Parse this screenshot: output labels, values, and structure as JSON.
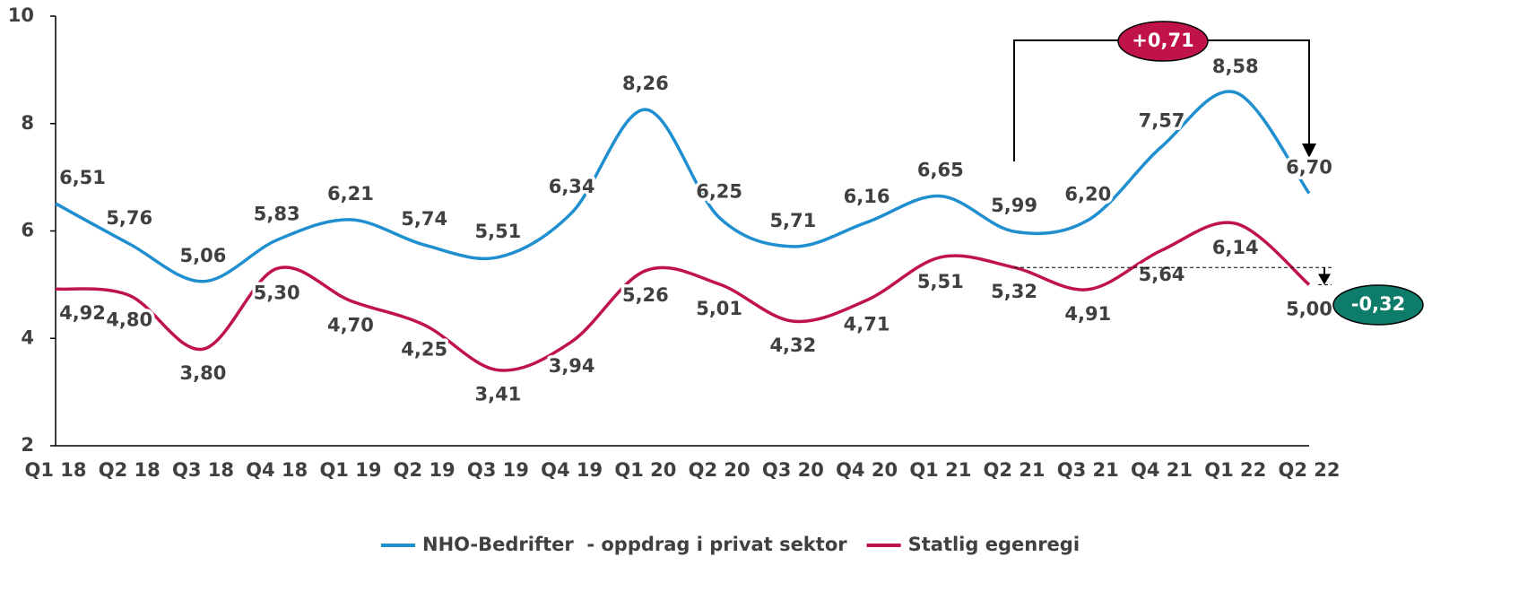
{
  "chart_data": {
    "type": "line",
    "categories": [
      "Q1 18",
      "Q2 18",
      "Q3 18",
      "Q4 18",
      "Q1 19",
      "Q2 19",
      "Q3 19",
      "Q4 19",
      "Q1 20",
      "Q2 20",
      "Q3 20",
      "Q4 20",
      "Q1 21",
      "Q2 21",
      "Q3 21",
      "Q4 21",
      "Q1 22",
      "Q2 22"
    ],
    "series": [
      {
        "name": "NHO-Bedrifter  - oppdrag i privat sektor",
        "color": "#1f8fcf",
        "values": [
          6.51,
          5.76,
          5.06,
          5.83,
          6.21,
          5.74,
          5.51,
          6.34,
          8.26,
          6.25,
          5.71,
          6.16,
          6.65,
          5.99,
          6.2,
          7.57,
          8.58,
          6.7
        ],
        "value_labels": [
          "6,51",
          "5,76",
          "5,06",
          "5,83",
          "6,21",
          "5,74",
          "5,51",
          "6,34",
          "8,26",
          "6,25",
          "5,71",
          "6,16",
          "6,65",
          "5,99",
          "6,20",
          "7,57",
          "8,58",
          "6,70"
        ]
      },
      {
        "name": "Statlig egenregi",
        "color": "#c0134a",
        "values": [
          4.92,
          4.8,
          3.8,
          5.3,
          4.7,
          4.25,
          3.41,
          3.94,
          5.26,
          5.01,
          4.32,
          4.71,
          5.51,
          5.32,
          4.91,
          5.64,
          6.14,
          5.0
        ],
        "value_labels": [
          "4,92",
          "4,80",
          "3,80",
          "5,30",
          "4,70",
          "4,25",
          "3,41",
          "3,94",
          "5,26",
          "5,01",
          "4,32",
          "4,71",
          "5,51",
          "5,32",
          "4,91",
          "5,64",
          "6,14",
          "5,00"
        ]
      }
    ],
    "ylim": [
      2,
      10
    ],
    "yticks": [
      2,
      4,
      6,
      8,
      10
    ],
    "annotations": [
      {
        "text": "+0,71",
        "color": "#c0134a"
      },
      {
        "text": "-0,32",
        "color": "#0e7c6b"
      }
    ]
  }
}
